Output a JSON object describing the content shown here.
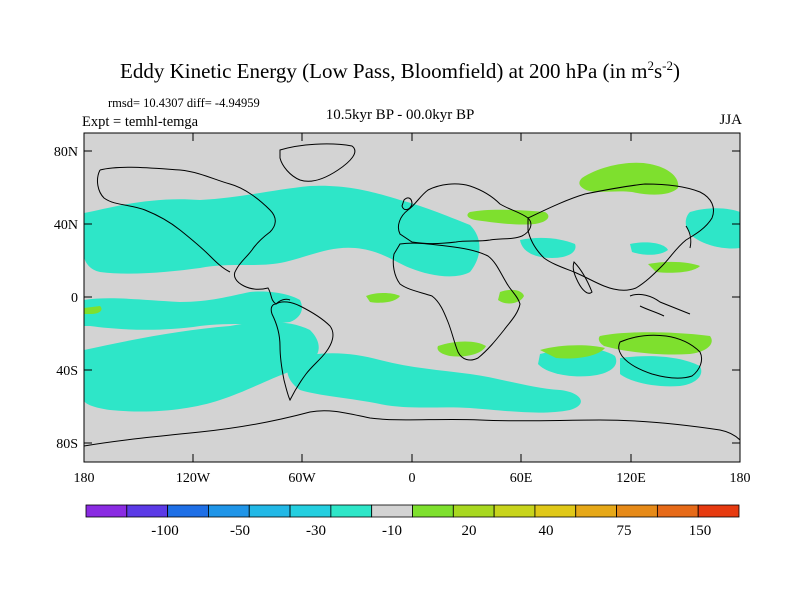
{
  "title": {
    "main": "Eddy Kinetic Energy (Low Pass, Bloomfield) at 200 hPa (in m",
    "sup1": "2",
    "mid": "s",
    "sup2": "-2",
    "end": ")"
  },
  "stats": "rmsd= 10.4307 diff= -4.94959",
  "experiment": "Expt = temhl-temga",
  "period": "10.5kyr BP - 00.0kyr BP",
  "season": "JJA",
  "colors": {
    "land_ocean_background": "#d3d3d3",
    "negative_fill": "#2ee6c8",
    "positive_fill": "#7ee02e",
    "coastline": "#000000"
  },
  "map": {
    "projection": "cylindrical-equidistant",
    "lon_range": [
      -180,
      180
    ],
    "lat_range": [
      -90,
      90
    ],
    "y_tick_labels": [
      "80N",
      "40N",
      "0",
      "40S",
      "80S"
    ],
    "x_tick_labels": [
      "180",
      "120W",
      "60W",
      "0",
      "60E",
      "120E",
      "180"
    ]
  },
  "colorbar": {
    "labels": [
      "-100",
      "-50",
      "-30",
      "-10",
      "20",
      "40",
      "75",
      "150"
    ],
    "colors": [
      "#8a2be2",
      "#5b3ae6",
      "#1e6fe6",
      "#1f95e8",
      "#22b8e6",
      "#24cfe0",
      "#2ee6c8",
      "#d3d3d3",
      "#7ee02e",
      "#a8d820",
      "#c8d41c",
      "#e0c818",
      "#e6a818",
      "#e68a18",
      "#e66a18",
      "#e63a10"
    ]
  }
}
